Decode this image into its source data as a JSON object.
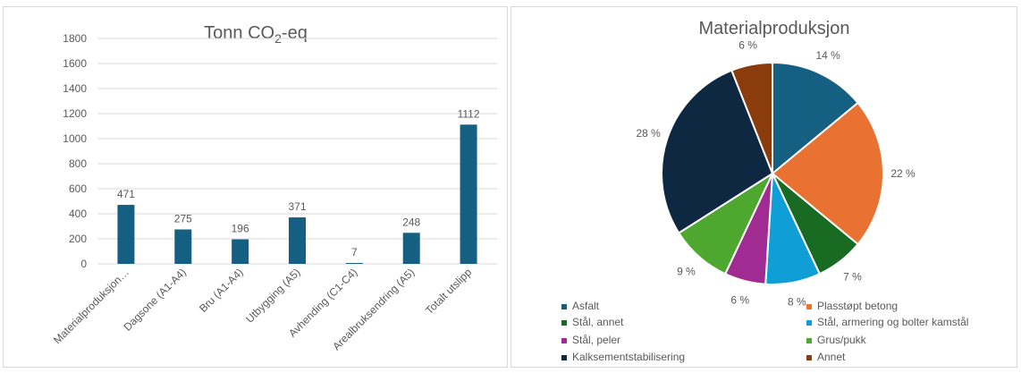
{
  "chart_data": [
    {
      "type": "bar",
      "title_main": "Tonn CO",
      "title_sub": "2",
      "title_tail": "-eq",
      "categories": [
        "Materialproduksjon…",
        "Dagsone (A1-A4)",
        "Bru (A1-A4)",
        "Utbygging (A5)",
        "Avhending (C1-C4)",
        "Arealbruksendring (A5)",
        "Totalt utslipp"
      ],
      "values": [
        471,
        275,
        196,
        371,
        7,
        248,
        1112
      ],
      "ylim": [
        0,
        1800
      ],
      "yticks": [
        0,
        200,
        400,
        600,
        800,
        1000,
        1200,
        1400,
        1600,
        1800
      ],
      "grid": true,
      "bar_color": "#156082"
    },
    {
      "type": "pie",
      "title": "Materialproduksjon",
      "slices": [
        {
          "name": "Asfalt",
          "value": 14,
          "label": "14 %",
          "color": "#156082"
        },
        {
          "name": "Plasstøpt betong",
          "value": 22,
          "label": "22 %",
          "color": "#E97132"
        },
        {
          "name": "Stål, annet",
          "value": 7,
          "label": "7 %",
          "color": "#196B24"
        },
        {
          "name": "Stål, armering og bolter kamstål",
          "value": 8,
          "label": "8 %",
          "color": "#0F9ED5"
        },
        {
          "name": "Stål, peler",
          "value": 6,
          "label": "6 %",
          "color": "#A02B93"
        },
        {
          "name": "Grus/pukk",
          "value": 9,
          "label": "9 %",
          "color": "#4EA72E"
        },
        {
          "name": "Kalksementstabilisering",
          "value": 28,
          "label": "28 %",
          "color": "#0E2841"
        },
        {
          "name": "Annet",
          "value": 6,
          "label": "6 %",
          "color": "#8A3C0C"
        }
      ],
      "legend_position": "bottom"
    }
  ]
}
